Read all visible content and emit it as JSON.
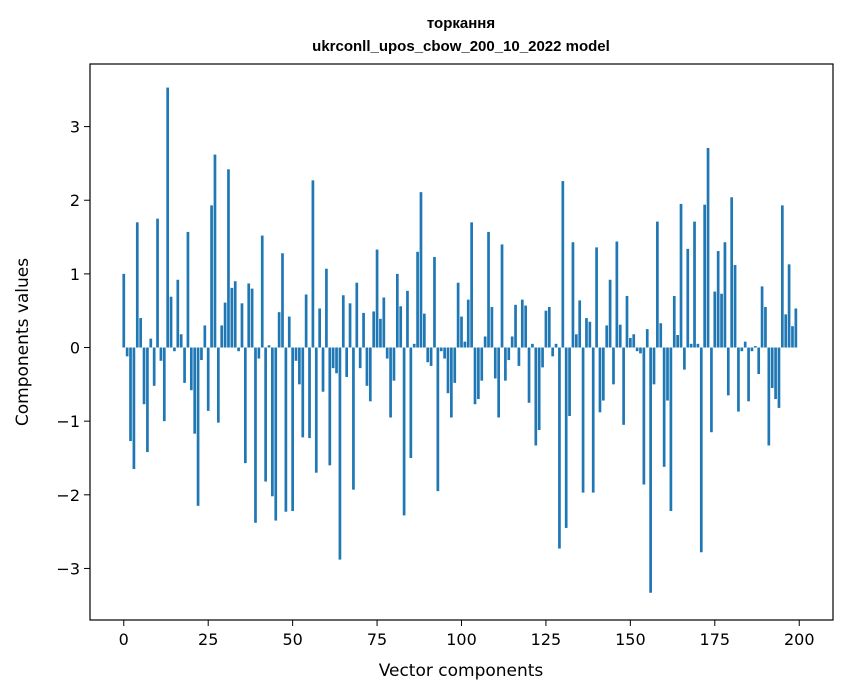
{
  "chart_data": {
    "type": "bar",
    "title": "торкання",
    "subtitle": "ukrconll_upos_cbow_200_10_2022 model",
    "xlabel": "Vector components",
    "ylabel": "Components values",
    "bar_color": "#1f77b4",
    "xlim": [
      -10,
      210
    ],
    "ylim": [
      -3.7,
      3.85
    ],
    "grid": false,
    "x_ticks": [
      0,
      25,
      50,
      75,
      100,
      125,
      150,
      175,
      200
    ],
    "y_ticks": [
      -3,
      -2,
      -1,
      0,
      1,
      2,
      3
    ],
    "x_tick_labels": [
      "0",
      "25",
      "50",
      "75",
      "100",
      "125",
      "150",
      "175",
      "200"
    ],
    "y_tick_labels": [
      "−3",
      "−2",
      "−1",
      "0",
      "1",
      "2",
      "3"
    ],
    "values": [
      1.0,
      -0.12,
      -1.27,
      -1.65,
      1.7,
      0.4,
      -0.77,
      -1.42,
      0.12,
      -0.52,
      1.75,
      -0.18,
      -1.0,
      3.53,
      0.69,
      -0.05,
      0.92,
      0.18,
      -0.48,
      1.57,
      -0.58,
      -1.17,
      -2.15,
      -0.17,
      0.3,
      -0.86,
      1.93,
      2.62,
      -1.02,
      0.3,
      0.61,
      2.42,
      0.81,
      0.9,
      -0.05,
      0.6,
      -1.57,
      0.87,
      0.8,
      -2.38,
      -0.15,
      1.52,
      -1.82,
      0.03,
      -2.02,
      -2.35,
      0.48,
      1.28,
      -2.23,
      0.42,
      -2.22,
      -0.18,
      -0.5,
      -1.22,
      0.72,
      -1.23,
      2.27,
      -1.7,
      0.53,
      -0.6,
      1.07,
      -1.6,
      -0.28,
      -0.35,
      -2.88,
      0.71,
      -0.4,
      0.6,
      -1.93,
      0.88,
      -0.28,
      0.47,
      -0.52,
      -0.73,
      0.49,
      1.33,
      0.39,
      0.68,
      -0.15,
      -0.95,
      -0.45,
      1.0,
      0.56,
      -2.28,
      0.77,
      -1.5,
      0.05,
      1.3,
      2.11,
      0.46,
      -0.2,
      -0.25,
      1.23,
      -1.95,
      -0.05,
      -0.15,
      -0.62,
      -0.95,
      -0.48,
      0.88,
      0.42,
      0.08,
      0.65,
      1.7,
      -0.77,
      -0.7,
      -0.45,
      0.15,
      1.57,
      0.55,
      -0.42,
      -0.95,
      1.4,
      -0.45,
      -0.17,
      0.15,
      0.58,
      -0.25,
      0.65,
      0.57,
      -0.75,
      0.05,
      -1.33,
      -1.12,
      -0.27,
      0.5,
      0.55,
      -0.12,
      0.05,
      -2.73,
      2.26,
      -2.45,
      -0.93,
      1.43,
      0.18,
      0.64,
      -1.97,
      0.4,
      0.35,
      -1.97,
      1.36,
      -0.88,
      -0.72,
      0.3,
      0.92,
      -0.5,
      1.44,
      0.31,
      -1.05,
      0.7,
      0.13,
      0.18,
      -0.05,
      -0.08,
      -1.86,
      0.25,
      -3.33,
      -0.5,
      1.71,
      0.33,
      -1.62,
      -0.72,
      -2.22,
      0.7,
      0.17,
      1.95,
      -0.3,
      1.34,
      0.05,
      1.71,
      0.05,
      -2.78,
      1.94,
      2.71,
      -1.15,
      0.76,
      1.31,
      0.73,
      1.43,
      -0.65,
      2.04,
      1.12,
      -0.87,
      -0.05,
      0.08,
      -0.73,
      -0.05,
      0.02,
      -0.36,
      0.83,
      0.55,
      -1.33,
      -0.55,
      -0.7,
      -0.82,
      1.93,
      0.45,
      1.13,
      0.29,
      0.53
    ]
  }
}
